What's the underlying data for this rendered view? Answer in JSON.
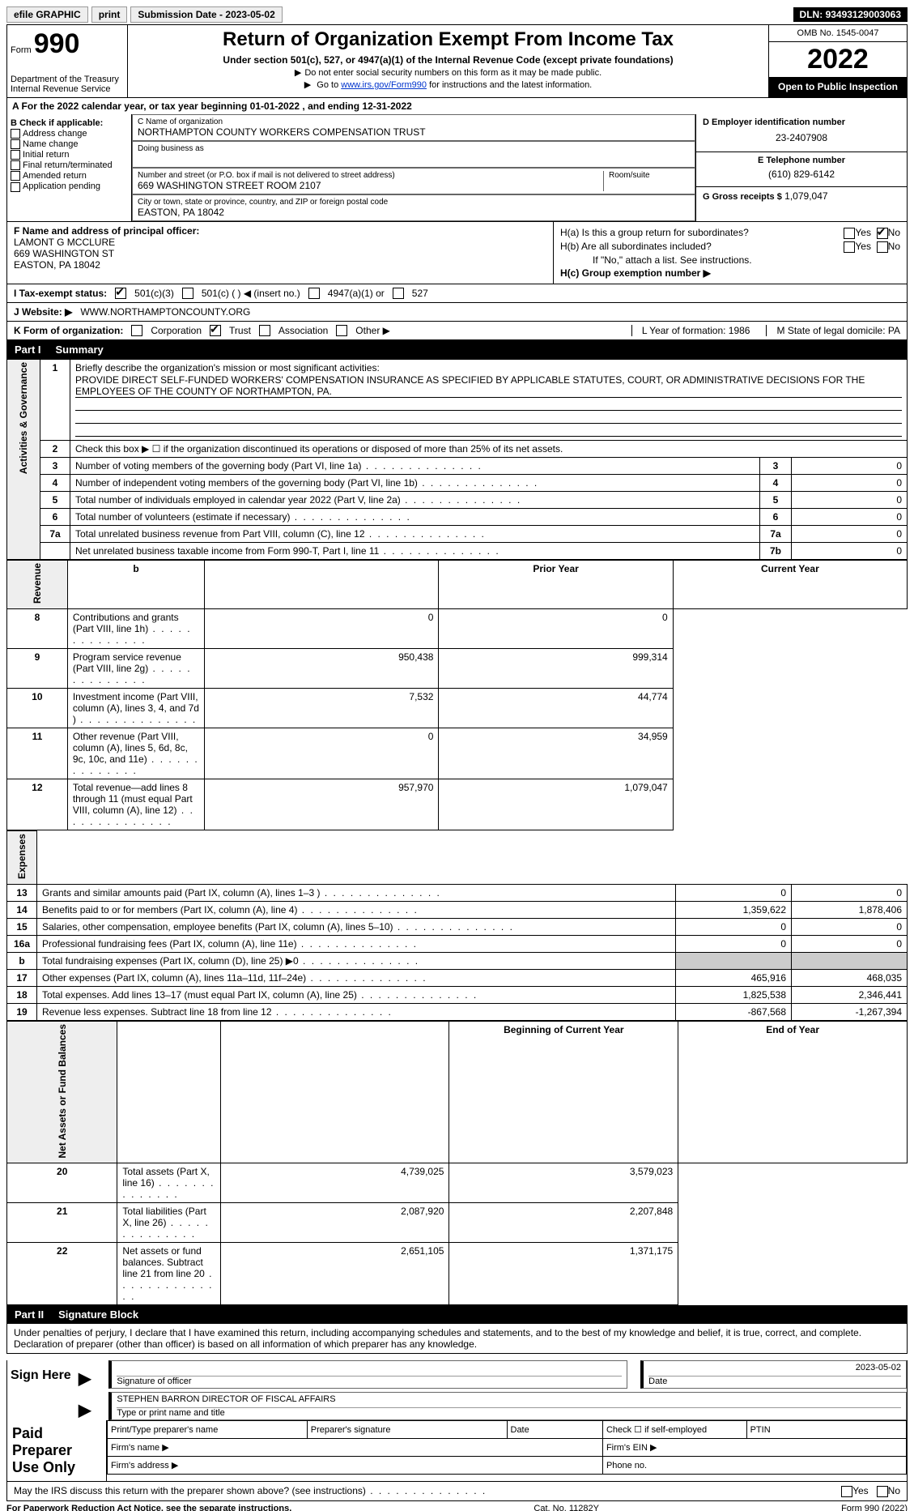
{
  "topbar": {
    "efile": "efile GRAPHIC",
    "print": "print",
    "submission_label": "Submission Date -",
    "submission_date": "2023-05-02",
    "dln_label": "DLN:",
    "dln": "93493129003063"
  },
  "header": {
    "form_label": "Form",
    "form_num": "990",
    "dept": "Department of the Treasury\nInternal Revenue Service",
    "title": "Return of Organization Exempt From Income Tax",
    "sub": "Under section 501(c), 527, or 4947(a)(1) of the Internal Revenue Code (except private foundations)",
    "note1": "Do not enter social security numbers on this form as it may be made public.",
    "note2_pre": "Go to ",
    "note2_link": "www.irs.gov/Form990",
    "note2_post": " for instructions and the latest information.",
    "omb": "OMB No. 1545-0047",
    "year": "2022",
    "open": "Open to Public Inspection"
  },
  "sectionA": {
    "text_pre": "A  For the 2022 calendar year, or tax year beginning ",
    "begin": "01-01-2022",
    "mid": " , and ending ",
    "end": "12-31-2022"
  },
  "colB": {
    "title": "B Check if applicable:",
    "items": [
      "Address change",
      "Name change",
      "Initial return",
      "Final return/terminated",
      "Amended return",
      "Application pending"
    ]
  },
  "colC": {
    "name_label": "C Name of organization",
    "name": "NORTHAMPTON COUNTY WORKERS COMPENSATION TRUST",
    "dba_label": "Doing business as",
    "dba": "",
    "addr_label": "Number and street (or P.O. box if mail is not delivered to street address)",
    "room_label": "Room/suite",
    "addr": "669 WASHINGTON STREET ROOM 2107",
    "city_label": "City or town, state or province, country, and ZIP or foreign postal code",
    "city": "EASTON, PA  18042"
  },
  "colD": {
    "ein_label": "D Employer identification number",
    "ein": "23-2407908",
    "phone_label": "E Telephone number",
    "phone": "(610) 829-6142",
    "gross_label": "G Gross receipts $",
    "gross": "1,079,047"
  },
  "colF": {
    "label": "F Name and address of principal officer:",
    "name": "LAMONT G MCCLURE",
    "addr1": "669 WASHINGTON ST",
    "addr2": "EASTON, PA  18042"
  },
  "colH": {
    "a_label": "H(a)  Is this a group return for subordinates?",
    "b_label": "H(b)  Are all subordinates included?",
    "b_note": "If \"No,\" attach a list. See instructions.",
    "c_label": "H(c)  Group exemption number ▶",
    "yes": "Yes",
    "no": "No"
  },
  "rowI": {
    "label": "I   Tax-exempt status:",
    "o1": "501(c)(3)",
    "o2": "501(c) (  ) ◀ (insert no.)",
    "o3": "4947(a)(1) or",
    "o4": "527"
  },
  "rowJ": {
    "label": "J   Website: ▶",
    "val": "WWW.NORTHAMPTONCOUNTY.ORG"
  },
  "rowK": {
    "label": "K Form of organization:",
    "opts": [
      "Corporation",
      "Trust",
      "Association",
      "Other ▶"
    ],
    "L": "L Year of formation: 1986",
    "M": "M State of legal domicile: PA"
  },
  "part1": {
    "part": "Part I",
    "title": "Summary",
    "q1": "Briefly describe the organization's mission or most significant activities:",
    "q1val": "PROVIDE DIRECT SELF-FUNDED WORKERS' COMPENSATION INSURANCE AS SPECIFIED BY APPLICABLE STATUTES, COURT, OR ADMINISTRATIVE DECISIONS FOR THE EMPLOYEES OF THE COUNTY OF NORTHAMPTON, PA.",
    "q2": "Check this box ▶ ☐  if the organization discontinued its operations or disposed of more than 25% of its net assets.",
    "tabs": {
      "gov": "Activities & Governance",
      "rev": "Revenue",
      "exp": "Expenses",
      "net": "Net Assets or Fund Balances"
    },
    "headers": {
      "prior": "Prior Year",
      "curr": "Current Year",
      "boy": "Beginning of Current Year",
      "eoy": "End of Year"
    },
    "rows_gov": [
      {
        "n": "3",
        "d": "Number of voting members of the governing body (Part VI, line 1a)",
        "k": "3",
        "v": "0"
      },
      {
        "n": "4",
        "d": "Number of independent voting members of the governing body (Part VI, line 1b)",
        "k": "4",
        "v": "0"
      },
      {
        "n": "5",
        "d": "Total number of individuals employed in calendar year 2022 (Part V, line 2a)",
        "k": "5",
        "v": "0"
      },
      {
        "n": "6",
        "d": "Total number of volunteers (estimate if necessary)",
        "k": "6",
        "v": "0"
      },
      {
        "n": "7a",
        "d": "Total unrelated business revenue from Part VIII, column (C), line 12",
        "k": "7a",
        "v": "0"
      },
      {
        "n": "",
        "d": "Net unrelated business taxable income from Form 990-T, Part I, line 11",
        "k": "7b",
        "v": "0"
      }
    ],
    "rows_rev": [
      {
        "n": "8",
        "d": "Contributions and grants (Part VIII, line 1h)",
        "p": "0",
        "c": "0"
      },
      {
        "n": "9",
        "d": "Program service revenue (Part VIII, line 2g)",
        "p": "950,438",
        "c": "999,314"
      },
      {
        "n": "10",
        "d": "Investment income (Part VIII, column (A), lines 3, 4, and 7d )",
        "p": "7,532",
        "c": "44,774"
      },
      {
        "n": "11",
        "d": "Other revenue (Part VIII, column (A), lines 5, 6d, 8c, 9c, 10c, and 11e)",
        "p": "0",
        "c": "34,959"
      },
      {
        "n": "12",
        "d": "Total revenue—add lines 8 through 11 (must equal Part VIII, column (A), line 12)",
        "p": "957,970",
        "c": "1,079,047"
      }
    ],
    "rows_exp": [
      {
        "n": "13",
        "d": "Grants and similar amounts paid (Part IX, column (A), lines 1–3 )",
        "p": "0",
        "c": "0"
      },
      {
        "n": "14",
        "d": "Benefits paid to or for members (Part IX, column (A), line 4)",
        "p": "1,359,622",
        "c": "1,878,406"
      },
      {
        "n": "15",
        "d": "Salaries, other compensation, employee benefits (Part IX, column (A), lines 5–10)",
        "p": "0",
        "c": "0"
      },
      {
        "n": "16a",
        "d": "Professional fundraising fees (Part IX, column (A), line 11e)",
        "p": "0",
        "c": "0"
      },
      {
        "n": "b",
        "d": "Total fundraising expenses (Part IX, column (D), line 25) ▶0",
        "p": "",
        "c": "",
        "shade": true
      },
      {
        "n": "17",
        "d": "Other expenses (Part IX, column (A), lines 11a–11d, 11f–24e)",
        "p": "465,916",
        "c": "468,035"
      },
      {
        "n": "18",
        "d": "Total expenses. Add lines 13–17 (must equal Part IX, column (A), line 25)",
        "p": "1,825,538",
        "c": "2,346,441"
      },
      {
        "n": "19",
        "d": "Revenue less expenses. Subtract line 18 from line 12",
        "p": "-867,568",
        "c": "-1,267,394"
      }
    ],
    "rows_net": [
      {
        "n": "20",
        "d": "Total assets (Part X, line 16)",
        "p": "4,739,025",
        "c": "3,579,023"
      },
      {
        "n": "21",
        "d": "Total liabilities (Part X, line 26)",
        "p": "2,087,920",
        "c": "2,207,848"
      },
      {
        "n": "22",
        "d": "Net assets or fund balances. Subtract line 21 from line 20",
        "p": "2,651,105",
        "c": "1,371,175"
      }
    ]
  },
  "part2": {
    "part": "Part II",
    "title": "Signature Block",
    "decl": "Under penalties of perjury, I declare that I have examined this return, including accompanying schedules and statements, and to the best of my knowledge and belief, it is true, correct, and complete. Declaration of preparer (other than officer) is based on all information of which preparer has any knowledge.",
    "sign_here": "Sign Here",
    "sig_officer": "Signature of officer",
    "sig_date_val": "2023-05-02",
    "date": "Date",
    "name_title": "STEPHEN BARRON  DIRECTOR OF FISCAL AFFAIRS",
    "name_label": "Type or print name and title",
    "paid": "Paid Preparer Use Only",
    "p_name": "Print/Type preparer's name",
    "p_sig": "Preparer's signature",
    "p_date": "Date",
    "p_check": "Check ☐ if self-employed",
    "ptin": "PTIN",
    "firm_name": "Firm's name  ▶",
    "firm_ein": "Firm's EIN ▶",
    "firm_addr": "Firm's address ▶",
    "firm_phone": "Phone no."
  },
  "footer": {
    "q": "May the IRS discuss this return with the preparer shown above? (see instructions)",
    "yes": "Yes",
    "no": "No",
    "pra": "For Paperwork Reduction Act Notice, see the separate instructions.",
    "cat": "Cat. No. 11282Y",
    "form": "Form 990 (2022)"
  }
}
